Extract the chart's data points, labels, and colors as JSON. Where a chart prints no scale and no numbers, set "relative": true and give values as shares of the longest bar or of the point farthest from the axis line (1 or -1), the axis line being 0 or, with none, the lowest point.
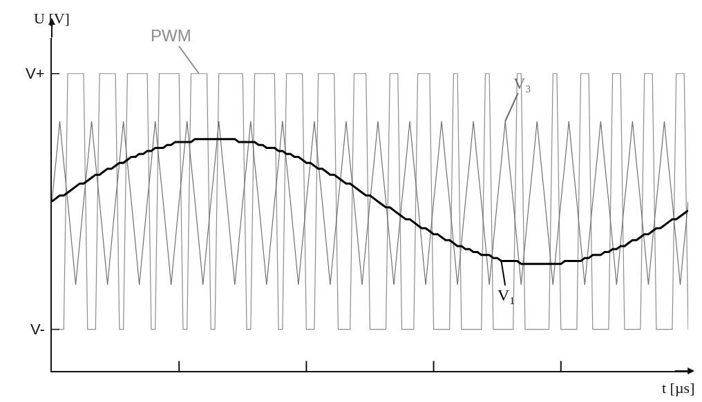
{
  "chart_data": {
    "type": "line",
    "relative": true,
    "xlabel": "t [µs]",
    "ylabel": "U [V]",
    "annotations": [
      "V+",
      "V-"
    ],
    "categories": [
      null,
      null,
      null,
      null,
      null,
      null,
      null,
      null,
      null,
      null,
      null,
      null,
      null,
      null,
      null,
      null,
      null,
      null,
      null,
      null,
      null,
      null,
      null,
      null,
      null,
      null,
      null,
      null,
      null,
      null,
      null,
      null,
      null,
      null,
      null,
      null,
      null,
      null,
      null,
      null,
      null,
      null,
      null,
      null,
      null,
      null,
      null,
      null,
      null,
      null,
      null,
      null,
      null,
      null,
      null,
      null,
      null,
      null,
      null,
      null,
      null,
      null,
      null,
      null,
      null,
      null,
      null,
      null,
      null,
      null,
      null,
      null,
      null,
      null,
      null,
      null,
      null,
      null,
      null,
      null,
      null,
      null,
      null,
      null,
      null,
      null,
      null,
      null,
      null,
      null,
      null,
      null,
      null,
      null,
      null,
      null,
      null,
      null,
      null,
      null,
      null,
      null,
      null,
      null,
      null,
      null,
      null,
      null,
      null,
      null,
      null,
      null,
      null,
      null,
      null,
      null,
      null,
      null,
      null,
      null,
      null,
      null,
      null,
      null,
      null,
      null,
      null,
      null,
      null,
      null,
      null,
      null,
      null,
      null,
      null,
      null,
      null,
      null,
      null,
      null,
      null,
      null,
      null,
      null,
      null,
      null,
      null,
      null,
      null,
      null,
      null,
      null,
      null,
      null,
      null,
      null,
      null,
      null,
      null,
      null,
      null
    ],
    "series": [
      {
        "name": "PWM",
        "color": "#8c8c8c",
        "values": [
          0.14,
          0.14,
          0.14,
          0.14,
          1,
          1,
          1,
          1,
          1,
          0.14,
          0.14,
          0.14,
          1,
          1,
          1,
          1,
          1,
          0.14,
          0.14,
          1,
          1,
          1,
          1,
          1,
          1,
          0.14,
          0.14,
          1,
          1,
          1,
          1,
          1,
          1,
          0.14,
          0.14,
          1,
          1,
          1,
          1,
          1,
          0.14,
          0.14,
          1,
          1,
          1,
          1,
          1,
          1,
          1,
          0.14,
          0.14,
          1,
          1,
          1,
          1,
          1,
          1,
          0.14,
          0.14,
          1,
          1,
          1,
          1,
          1,
          0.14,
          0.14,
          0.14,
          1,
          1,
          1,
          1,
          1,
          0.14,
          0.14,
          0.14,
          0.14,
          1,
          1,
          1,
          1,
          0.14,
          0.14,
          0.14,
          0.14,
          0.14,
          1,
          1,
          1,
          0.14,
          0.14,
          0.14,
          0.14,
          1,
          1,
          1,
          1,
          0.14,
          0.14,
          0.14,
          0.14,
          0.14,
          1,
          1,
          0.14,
          0.14,
          0.14,
          0.14,
          0.14,
          0.14,
          1,
          1,
          0.14,
          0.14,
          0.14,
          0.14,
          0.14,
          0.14,
          1,
          1,
          0.14,
          0.14,
          0.14,
          0.14,
          0.14,
          0.14,
          0.14,
          1,
          1,
          0.14,
          0.14,
          0.14,
          0.14,
          0.14,
          1,
          1,
          1,
          0.14,
          0.14,
          0.14,
          0.14,
          0.14,
          1,
          1,
          1,
          0.14,
          0.14,
          0.14,
          0.14,
          0.14,
          1,
          1,
          1,
          0.14,
          0.14,
          0.14,
          0.14,
          0.14,
          1,
          1,
          1,
          0.14
        ]
      },
      {
        "name": "V₃",
        "color": "#6e6e6e",
        "values": [
          0.57,
          0.7,
          0.84,
          0.7,
          0.57,
          0.43,
          0.29,
          0.43,
          0.57,
          0.7,
          0.84,
          0.7,
          0.57,
          0.43,
          0.29,
          0.43,
          0.57,
          0.7,
          0.84,
          0.7,
          0.57,
          0.43,
          0.29,
          0.43,
          0.57,
          0.7,
          0.84,
          0.7,
          0.57,
          0.43,
          0.29,
          0.43,
          0.57,
          0.7,
          0.84,
          0.7,
          0.57,
          0.43,
          0.29,
          0.43,
          0.57,
          0.7,
          0.84,
          0.7,
          0.57,
          0.43,
          0.29,
          0.43,
          0.57,
          0.7,
          0.84,
          0.7,
          0.57,
          0.43,
          0.29,
          0.43,
          0.57,
          0.7,
          0.84,
          0.7,
          0.57,
          0.43,
          0.29,
          0.43,
          0.57,
          0.7,
          0.84,
          0.7,
          0.57,
          0.43,
          0.29,
          0.43,
          0.57,
          0.7,
          0.84,
          0.7,
          0.57,
          0.43,
          0.29,
          0.43,
          0.57,
          0.7,
          0.84,
          0.7,
          0.57,
          0.43,
          0.29,
          0.43,
          0.57,
          0.7,
          0.84,
          0.7,
          0.57,
          0.43,
          0.29,
          0.43,
          0.57,
          0.7,
          0.84,
          0.7,
          0.57,
          0.43,
          0.29,
          0.43,
          0.57,
          0.7,
          0.84,
          0.7,
          0.57,
          0.43,
          0.29,
          0.43,
          0.57,
          0.7,
          0.84,
          0.7,
          0.57,
          0.43,
          0.29,
          0.43,
          0.57,
          0.7,
          0.84,
          0.7,
          0.57,
          0.43,
          0.29,
          0.43,
          0.57,
          0.7,
          0.84,
          0.7,
          0.57,
          0.43,
          0.29,
          0.43,
          0.57,
          0.7,
          0.84,
          0.7,
          0.57,
          0.43,
          0.29,
          0.43,
          0.57,
          0.7,
          0.84,
          0.7,
          0.57,
          0.43,
          0.29,
          0.43,
          0.57,
          0.7,
          0.84,
          0.7,
          0.57,
          0.43,
          0.29,
          0.43,
          0.57
        ]
      },
      {
        "name": "V₁",
        "color": "#000000",
        "values": [
          0.57,
          0.58,
          0.59,
          0.59,
          0.6,
          0.61,
          0.62,
          0.63,
          0.63,
          0.64,
          0.65,
          0.66,
          0.66,
          0.67,
          0.68,
          0.68,
          0.69,
          0.7,
          0.7,
          0.71,
          0.72,
          0.72,
          0.73,
          0.73,
          0.74,
          0.74,
          0.75,
          0.75,
          0.75,
          0.76,
          0.76,
          0.77,
          0.77,
          0.77,
          0.77,
          0.77,
          0.78,
          0.78,
          0.78,
          0.78,
          0.78,
          0.78,
          0.78,
          0.78,
          0.78,
          0.78,
          0.78,
          0.77,
          0.77,
          0.77,
          0.77,
          0.77,
          0.76,
          0.76,
          0.75,
          0.75,
          0.75,
          0.74,
          0.74,
          0.73,
          0.73,
          0.72,
          0.72,
          0.71,
          0.7,
          0.7,
          0.69,
          0.68,
          0.68,
          0.67,
          0.66,
          0.66,
          0.65,
          0.64,
          0.63,
          0.63,
          0.62,
          0.61,
          0.6,
          0.59,
          0.59,
          0.58,
          0.57,
          0.56,
          0.55,
          0.55,
          0.54,
          0.53,
          0.52,
          0.51,
          0.51,
          0.5,
          0.49,
          0.48,
          0.48,
          0.47,
          0.46,
          0.46,
          0.45,
          0.44,
          0.44,
          0.43,
          0.42,
          0.42,
          0.41,
          0.41,
          0.4,
          0.4,
          0.39,
          0.39,
          0.39,
          0.38,
          0.38,
          0.37,
          0.37,
          0.37,
          0.37,
          0.37,
          0.36,
          0.36,
          0.36,
          0.36,
          0.36,
          0.36,
          0.36,
          0.36,
          0.36,
          0.36,
          0.36,
          0.37,
          0.37,
          0.37,
          0.37,
          0.37,
          0.38,
          0.38,
          0.39,
          0.39,
          0.39,
          0.4,
          0.4,
          0.41,
          0.41,
          0.42,
          0.42,
          0.43,
          0.44,
          0.44,
          0.45,
          0.46,
          0.46,
          0.47,
          0.48,
          0.48,
          0.49,
          0.5,
          0.51,
          0.51,
          0.52,
          0.53,
          0.54
        ]
      }
    ]
  }
}
